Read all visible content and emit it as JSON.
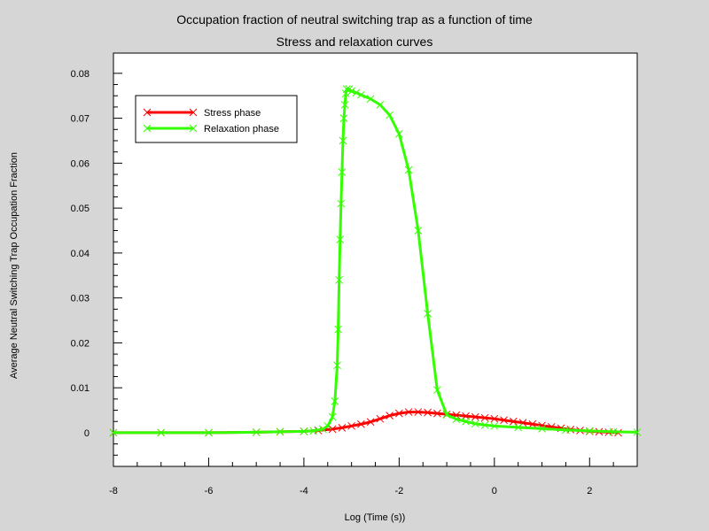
{
  "chart_data": {
    "type": "line",
    "title": "Occupation fraction of neutral switching trap as a function of time",
    "subtitle": "Stress and relaxation curves",
    "xlabel": "Log (Time (s))",
    "ylabel": "Average Neutral Switching Trap Occupation Fraction",
    "xlim": [
      -8,
      3
    ],
    "ylim": [
      -0.0075,
      0.0845
    ],
    "x_ticks": [
      -8,
      -6,
      -4,
      -2,
      0,
      2
    ],
    "x_tick_labels": [
      "-8",
      "-6",
      "-4",
      "-2",
      "0",
      "2"
    ],
    "y_ticks": [
      0,
      0.01,
      0.02,
      0.03,
      0.04,
      0.05,
      0.06,
      0.07,
      0.08
    ],
    "y_tick_labels": [
      "0",
      "0.01",
      "0.02",
      "0.03",
      "0.04",
      "0.05",
      "0.06",
      "0.07",
      "0.08"
    ],
    "grid": false,
    "legend_position": "top-left",
    "series": [
      {
        "name": "Stress phase",
        "color": "#ff0000",
        "marker": "x",
        "x": [
          -8.0,
          -7.0,
          -6.0,
          -5.0,
          -4.5,
          -4.0,
          -3.7,
          -3.4,
          -3.2,
          -3.0,
          -2.8,
          -2.6,
          -2.4,
          -2.2,
          -2.0,
          -1.8,
          -1.6,
          -1.4,
          -1.2,
          -1.0,
          -0.8,
          -0.6,
          -0.4,
          -0.2,
          0.0,
          0.2,
          0.4,
          0.6,
          0.8,
          1.0,
          1.2,
          1.4,
          1.6,
          1.8,
          2.0,
          2.2,
          2.4,
          2.6
        ],
        "y": [
          0.0,
          0.0,
          0.0,
          0.0001,
          0.0002,
          0.0003,
          0.0005,
          0.0008,
          0.0011,
          0.0015,
          0.0019,
          0.0024,
          0.0031,
          0.0038,
          0.0043,
          0.0046,
          0.0046,
          0.0045,
          0.0043,
          0.0041,
          0.0039,
          0.0037,
          0.0035,
          0.0033,
          0.0031,
          0.0028,
          0.0025,
          0.0022,
          0.0019,
          0.0016,
          0.0013,
          0.001,
          0.0007,
          0.0005,
          0.0003,
          0.0002,
          0.0001,
          0.0
        ]
      },
      {
        "name": "Relaxation phase",
        "color": "#33ff00",
        "marker": "x",
        "x": [
          -8.0,
          -7.0,
          -6.0,
          -5.0,
          -4.5,
          -4.0,
          -3.8,
          -3.6,
          -3.5,
          -3.4,
          -3.35,
          -3.3,
          -3.28,
          -3.26,
          -3.24,
          -3.22,
          -3.2,
          -3.18,
          -3.16,
          -3.14,
          -3.12,
          -3.1,
          -3.05,
          -3.0,
          -2.9,
          -2.8,
          -2.6,
          -2.4,
          -2.2,
          -2.0,
          -1.8,
          -1.6,
          -1.4,
          -1.2,
          -1.0,
          -0.8,
          -0.6,
          -0.4,
          -0.2,
          0.0,
          0.5,
          1.0,
          1.5,
          2.0,
          2.5,
          3.0
        ],
        "y": [
          0.0,
          0.0,
          0.0,
          0.0001,
          0.0002,
          0.0003,
          0.0004,
          0.0008,
          0.0015,
          0.0035,
          0.007,
          0.015,
          0.023,
          0.034,
          0.043,
          0.051,
          0.058,
          0.065,
          0.07,
          0.073,
          0.0755,
          0.0765,
          0.0765,
          0.076,
          0.0757,
          0.0752,
          0.0743,
          0.073,
          0.0707,
          0.0665,
          0.0585,
          0.045,
          0.0265,
          0.0095,
          0.004,
          0.003,
          0.0025,
          0.002,
          0.0017,
          0.0015,
          0.0012,
          0.0009,
          0.0006,
          0.0004,
          0.0002,
          0.0001
        ]
      }
    ]
  }
}
